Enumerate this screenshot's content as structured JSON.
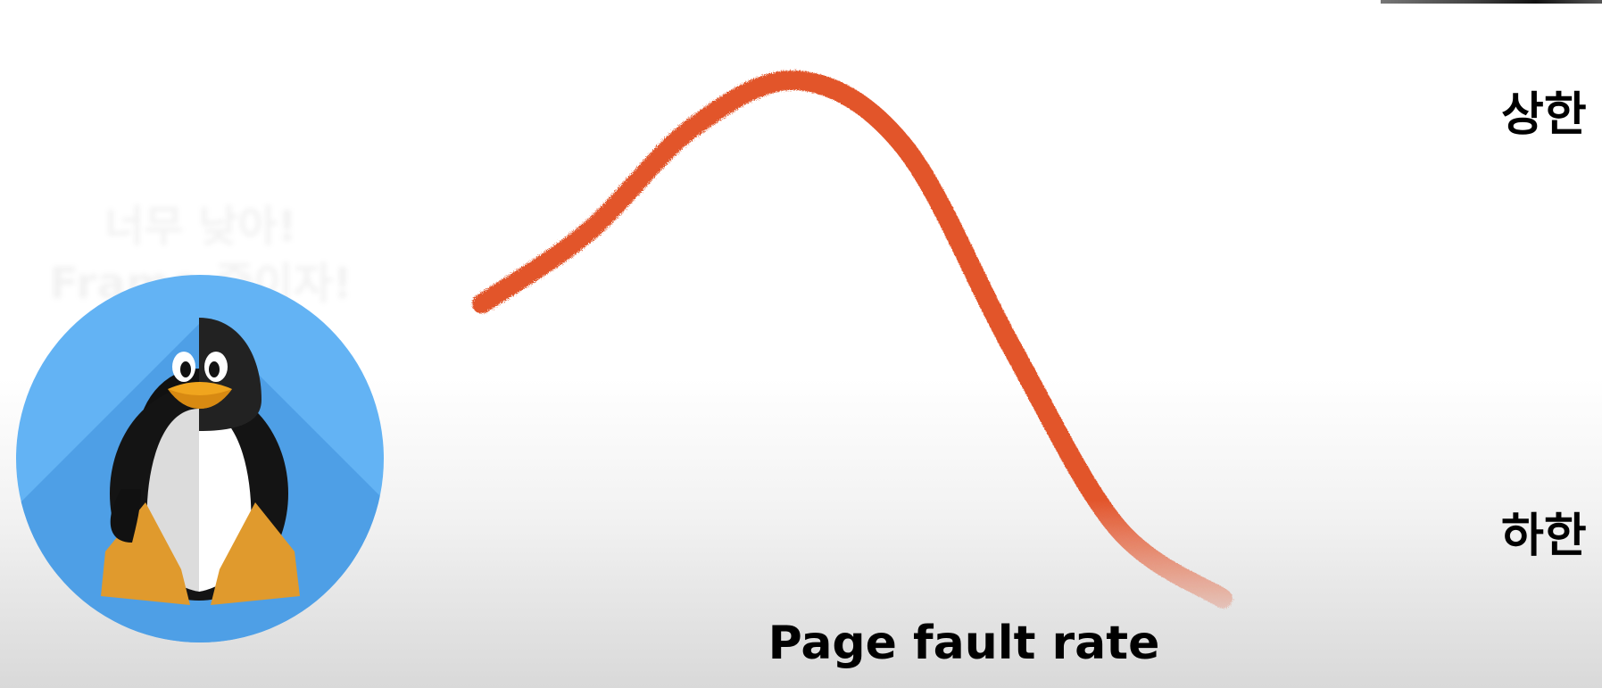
{
  "overlay": {
    "line1": "너무 낮아!",
    "line2": "Frame 줄이자!"
  },
  "chart_data": {
    "type": "line",
    "title": "",
    "xlabel": "Page fault rate",
    "ylabel": "",
    "grid": false,
    "x": [
      0,
      1,
      2,
      3,
      4,
      5,
      6,
      7
    ],
    "series": [
      {
        "values": [
          0.55,
          0.72,
          0.97,
          1.08,
          0.92,
          0.45,
          0.02,
          -0.15
        ],
        "color": "#e2552c"
      }
    ],
    "reference_lines": [
      {
        "label": "상한",
        "value": 1.0,
        "color": "#2e6fbe"
      },
      {
        "label": "하한",
        "value": 0.0,
        "color": "#3d6b22"
      }
    ]
  },
  "icons": {
    "logo": "linux-penguin-icon"
  }
}
